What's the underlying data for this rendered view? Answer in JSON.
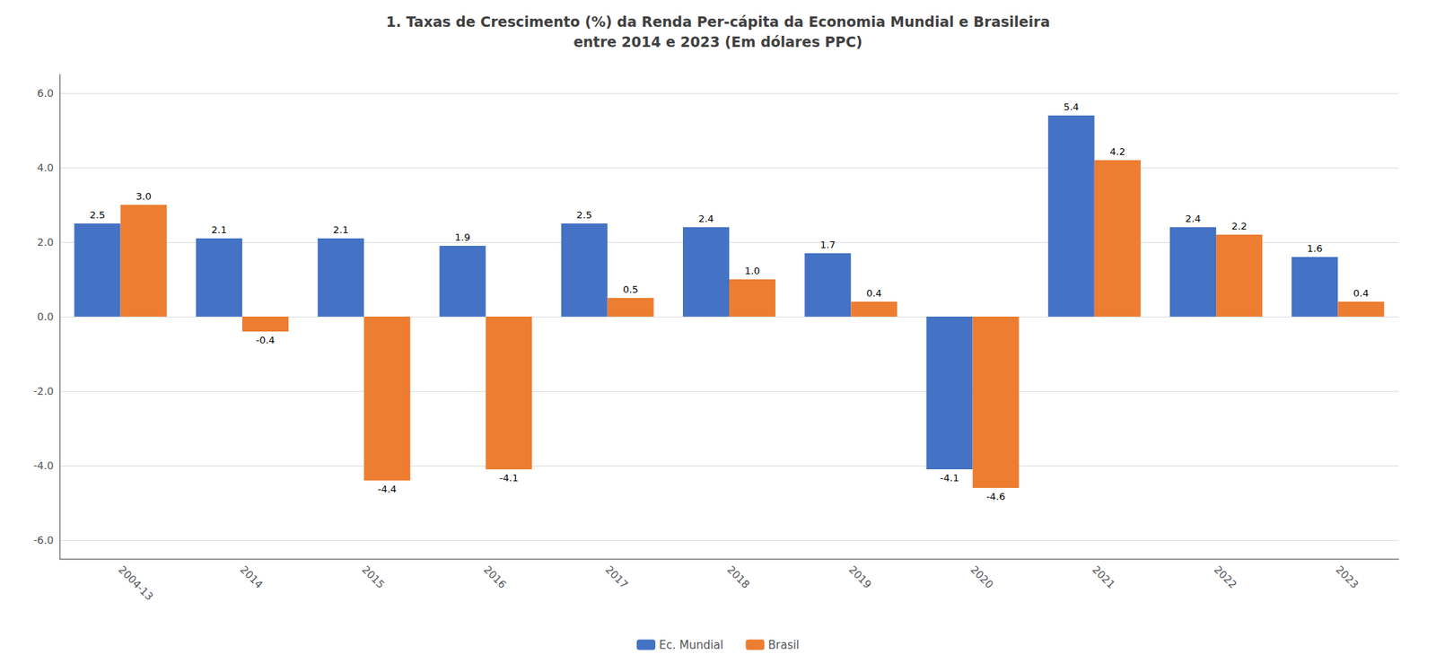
{
  "chart_data": {
    "type": "bar",
    "title": "1. Taxas de Crescimento (%) da Renda Per-cápita da Economia Mundial e Brasileira",
    "subtitle": "entre 2014 e 2023 (Em dólares PPC)",
    "categories": [
      "2004-13",
      "2014",
      "2015",
      "2016",
      "2017",
      "2018",
      "2019",
      "2020",
      "2021",
      "2022",
      "2023"
    ],
    "series": [
      {
        "name": "Ec. Mundial",
        "color": "#4472C4",
        "values": [
          2.5,
          2.1,
          2.1,
          1.9,
          2.5,
          2.4,
          1.7,
          -4.1,
          5.4,
          2.4,
          1.6
        ]
      },
      {
        "name": "Brasil",
        "color": "#ED7D31",
        "values": [
          3.0,
          -0.4,
          -4.4,
          -4.1,
          0.5,
          1.0,
          0.4,
          -4.6,
          4.2,
          2.2,
          0.4
        ],
        "value_labels": [
          "3.0",
          "-0.4",
          "-4.4",
          "-4.1",
          "0.5",
          "1.0",
          "0.4",
          "-4.6",
          "4.2",
          "2.2",
          "0.4"
        ]
      }
    ],
    "ylim": [
      -6.5,
      6.5
    ],
    "yticks": [
      {
        "value": -6,
        "label": "-6.0"
      },
      {
        "value": -4,
        "label": "-4.0"
      },
      {
        "value": -2,
        "label": "-2.0"
      },
      {
        "value": 0,
        "label": "0.0"
      },
      {
        "value": 2,
        "label": "2.0"
      },
      {
        "value": 4,
        "label": "4.0"
      },
      {
        "value": 6,
        "label": "6.0"
      }
    ],
    "grid": true,
    "legend": "bottom",
    "data_labels": true
  }
}
